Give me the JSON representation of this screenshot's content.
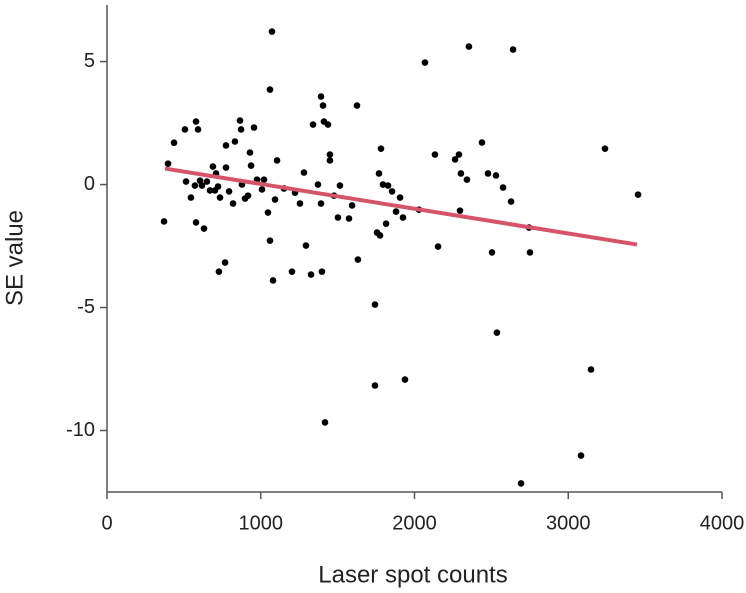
{
  "chart_data": {
    "type": "scatter",
    "x_label": "Laser spot counts",
    "y_label": "SE value",
    "xlim": [
      0,
      4000
    ],
    "ylim": [
      -12.5,
      7.3
    ],
    "xticks": [
      0,
      1000,
      2000,
      3000,
      4000
    ],
    "yticks": [
      5,
      0,
      -5,
      -10
    ],
    "color": "#000000",
    "x": [
      371,
      397,
      436,
      507,
      514,
      546,
      572,
      579,
      579,
      592,
      605,
      618,
      631,
      650,
      670,
      689,
      702,
      709,
      722,
      728,
      735,
      768,
      774,
      774,
      794,
      820,
      832,
      865,
      872,
      878,
      898,
      917,
      930,
      937,
      956,
      976,
      1008,
      1021,
      1047,
      1060,
      1060,
      1073,
      1080,
      1093,
      1106,
      1151,
      1203,
      1223,
      1255,
      1281,
      1294,
      1327,
      1340,
      1372,
      1392,
      1392,
      1398,
      1405,
      1411,
      1418,
      1437,
      1450,
      1450,
      1476,
      1502,
      1515,
      1574,
      1594,
      1626,
      1632,
      1743,
      1743,
      1756,
      1769,
      1776,
      1782,
      1795,
      1815,
      1828,
      1854,
      1880,
      1906,
      1925,
      1938,
      2029,
      2068,
      2133,
      2153,
      2264,
      2289,
      2296,
      2302,
      2341,
      2354,
      2439,
      2478,
      2504,
      2530,
      2536,
      2576,
      2628,
      2641,
      2693,
      2745,
      2751,
      3083,
      3148,
      3239,
      3454
    ],
    "y": [
      -1.5,
      0.85,
      1.7,
      2.24,
      0.12,
      -0.53,
      -0.04,
      2.56,
      -1.54,
      2.24,
      0.16,
      -0.04,
      -1.79,
      0.12,
      -0.24,
      0.73,
      -0.24,
      0.45,
      -0.08,
      -3.54,
      -0.53,
      -3.17,
      1.59,
      0.69,
      -0.28,
      -0.77,
      1.75,
      2.6,
      2.24,
      0,
      -0.57,
      -0.45,
      1.3,
      0.77,
      2.32,
      0.2,
      -0.2,
      0.2,
      -1.14,
      3.86,
      -2.28,
      6.22,
      -3.9,
      -0.61,
      0.98,
      -0.16,
      -3.54,
      -0.33,
      -0.77,
      0.49,
      -2.48,
      -3.66,
      2.44,
      0,
      3.58,
      -0.77,
      -3.54,
      3.21,
      2.56,
      -9.67,
      2.44,
      1.22,
      0.98,
      -0.45,
      -1.34,
      -0.04,
      -1.38,
      -0.85,
      3.21,
      -3.05,
      -4.88,
      -8.17,
      -1.95,
      0.45,
      -2.07,
      1.46,
      0,
      -1.59,
      -0.04,
      -0.28,
      -1.1,
      -0.53,
      -1.34,
      -7.93,
      -1.02,
      4.96,
      1.22,
      -2.52,
      1.02,
      1.22,
      -1.06,
      0.45,
      0.2,
      5.61,
      1.71,
      0.45,
      -2.76,
      0.37,
      -6.02,
      -0.12,
      -0.69,
      5.49,
      -12.15,
      -1.75,
      -2.76,
      -11.02,
      -7.52,
      1.46,
      -0.41
    ],
    "fit_line": {
      "x": [
        377,
        3447
      ],
      "y": [
        0.65,
        -2.44
      ],
      "color": "#d65469"
    }
  }
}
